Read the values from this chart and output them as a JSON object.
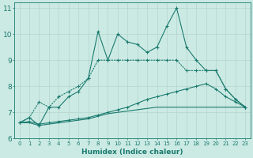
{
  "xlabel": "Humidex (Indice chaleur)",
  "x": [
    0,
    1,
    2,
    3,
    4,
    5,
    6,
    7,
    8,
    9,
    10,
    11,
    12,
    13,
    14,
    15,
    16,
    17,
    18,
    19,
    20,
    21,
    22,
    23
  ],
  "line1": [
    6.6,
    6.8,
    6.5,
    7.2,
    7.2,
    7.6,
    7.8,
    8.3,
    10.1,
    9.0,
    10.0,
    9.7,
    9.6,
    9.3,
    9.5,
    10.3,
    11.0,
    9.5,
    9.0,
    8.6,
    8.6,
    7.9,
    7.5,
    7.2
  ],
  "line2": [
    6.6,
    6.8,
    7.4,
    7.2,
    7.6,
    7.8,
    8.0,
    8.3,
    9.0,
    9.0,
    9.0,
    9.0,
    9.0,
    9.0,
    9.0,
    9.0,
    9.0,
    8.6,
    8.6,
    8.6,
    8.6,
    7.9,
    7.5,
    7.2
  ],
  "line3": [
    6.6,
    6.65,
    6.55,
    6.6,
    6.65,
    6.7,
    6.75,
    6.8,
    6.9,
    7.0,
    7.1,
    7.2,
    7.35,
    7.5,
    7.6,
    7.7,
    7.8,
    7.9,
    8.0,
    8.1,
    7.9,
    7.6,
    7.4,
    7.2
  ],
  "line4": [
    6.6,
    6.6,
    6.5,
    6.55,
    6.6,
    6.65,
    6.7,
    6.75,
    6.85,
    6.95,
    7.0,
    7.05,
    7.1,
    7.15,
    7.2,
    7.2,
    7.2,
    7.2,
    7.2,
    7.2,
    7.2,
    7.2,
    7.2,
    7.2
  ],
  "line_color": "#1a7a6e",
  "bg_color": "#cceae4",
  "grid_color": "#b8d8d2",
  "ylim": [
    6,
    11.2
  ],
  "yticks": [
    6,
    7,
    8,
    9,
    10,
    11
  ],
  "xlim": [
    -0.5,
    23.5
  ]
}
